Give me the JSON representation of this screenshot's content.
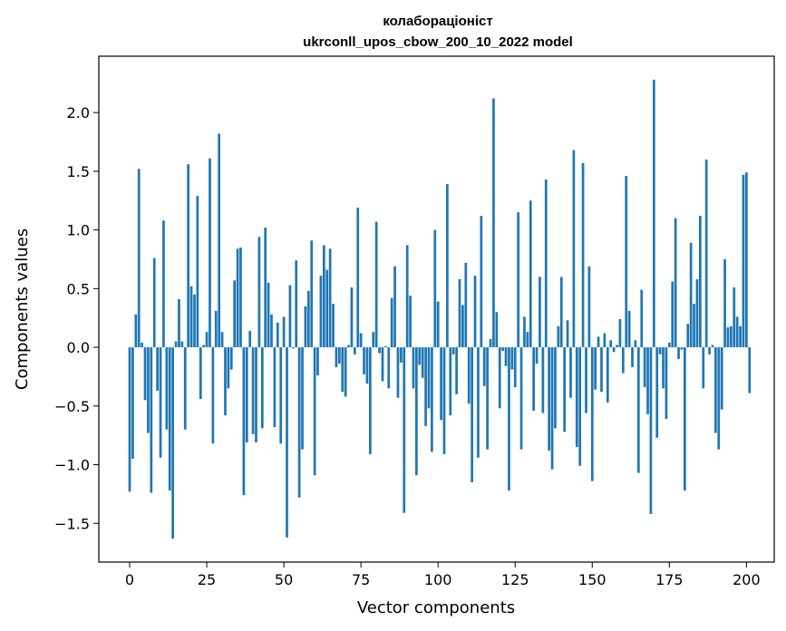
{
  "chart_data": {
    "type": "bar",
    "title": "колабораціоніст",
    "subtitle": "ukrconll_upos_cbow_200_10_2022 model",
    "xlabel": "Vector components",
    "ylabel": "Components values",
    "xlim": [
      -10,
      209
    ],
    "ylim": [
      -1.83,
      2.48
    ],
    "xticks": [
      0,
      25,
      50,
      75,
      100,
      125,
      150,
      175,
      200
    ],
    "yticks": [
      -1.5,
      -1.0,
      -0.5,
      0.0,
      0.5,
      1.0,
      1.5,
      2.0
    ],
    "ytick_labels": [
      "−1.5",
      "−1.0",
      "−0.5",
      "0.0",
      "0.5",
      "1.0",
      "1.5",
      "2.0"
    ],
    "grid": false,
    "bar_color": "#1f77b4",
    "x_start": 0,
    "values": [
      -1.23,
      -0.95,
      0.28,
      1.52,
      0.04,
      -0.45,
      -0.73,
      -1.24,
      0.76,
      -0.37,
      -0.94,
      1.08,
      -0.7,
      -1.22,
      -1.63,
      0.05,
      0.41,
      0.05,
      -0.7,
      1.56,
      0.52,
      0.45,
      1.29,
      -0.44,
      0.02,
      0.13,
      1.61,
      -0.82,
      0.31,
      1.82,
      0.13,
      -0.58,
      -0.35,
      -0.19,
      0.57,
      0.84,
      0.85,
      -1.26,
      -0.81,
      0.14,
      -0.74,
      -0.81,
      0.94,
      -0.69,
      1.02,
      0.55,
      0.28,
      -0.68,
      0.21,
      -0.82,
      0.26,
      -1.62,
      0.53,
      -0.01,
      0.74,
      -1.28,
      -0.87,
      0.35,
      0.48,
      0.91,
      -1.09,
      -0.24,
      0.61,
      0.87,
      0.66,
      0.84,
      0.37,
      -0.17,
      -0.14,
      -0.38,
      -0.42,
      0.02,
      0.51,
      -0.06,
      1.19,
      0.12,
      -0.23,
      -0.31,
      -0.91,
      0.13,
      1.07,
      -0.05,
      -0.29,
      0.01,
      -0.35,
      0.42,
      0.69,
      -0.43,
      -0.13,
      -1.41,
      0.87,
      0.44,
      -0.35,
      -1.09,
      -0.15,
      -0.26,
      -0.67,
      -0.52,
      -0.89,
      1.0,
      0.39,
      -0.62,
      -0.91,
      1.39,
      -0.58,
      -0.06,
      -0.4,
      0.58,
      0.36,
      0.72,
      -0.48,
      -1.15,
      0.61,
      -0.94,
      1.12,
      -0.33,
      -0.87,
      0.07,
      2.12,
      0.3,
      -0.52,
      -0.03,
      -0.16,
      -1.22,
      -0.19,
      -0.34,
      1.15,
      -0.87,
      0.26,
      0.13,
      1.25,
      -0.54,
      -0.14,
      0.6,
      -0.56,
      1.43,
      -0.88,
      -1.04,
      -0.69,
      0.18,
      0.6,
      -0.72,
      0.23,
      -0.43,
      1.68,
      -0.85,
      -1.01,
      1.57,
      -0.56,
      0.69,
      -1.14,
      -0.36,
      0.09,
      -0.38,
      0.12,
      -0.47,
      0.06,
      -0.04,
      0.02,
      0.24,
      -0.22,
      1.46,
      0.31,
      -0.17,
      0.06,
      -1.07,
      0.49,
      -0.34,
      -0.57,
      -1.42,
      2.28,
      -0.77,
      -0.06,
      -0.35,
      -0.61,
      0.04,
      0.56,
      1.1,
      -0.1,
      -0.02,
      -1.22,
      0.2,
      0.89,
      0.37,
      0.58,
      1.12,
      -0.35,
      1.6,
      -0.06,
      0.02,
      -0.73,
      -0.87,
      -0.53,
      0.75,
      0.17,
      0.18,
      0.51,
      0.26,
      0.18,
      1.47,
      1.49,
      -0.39
    ]
  }
}
